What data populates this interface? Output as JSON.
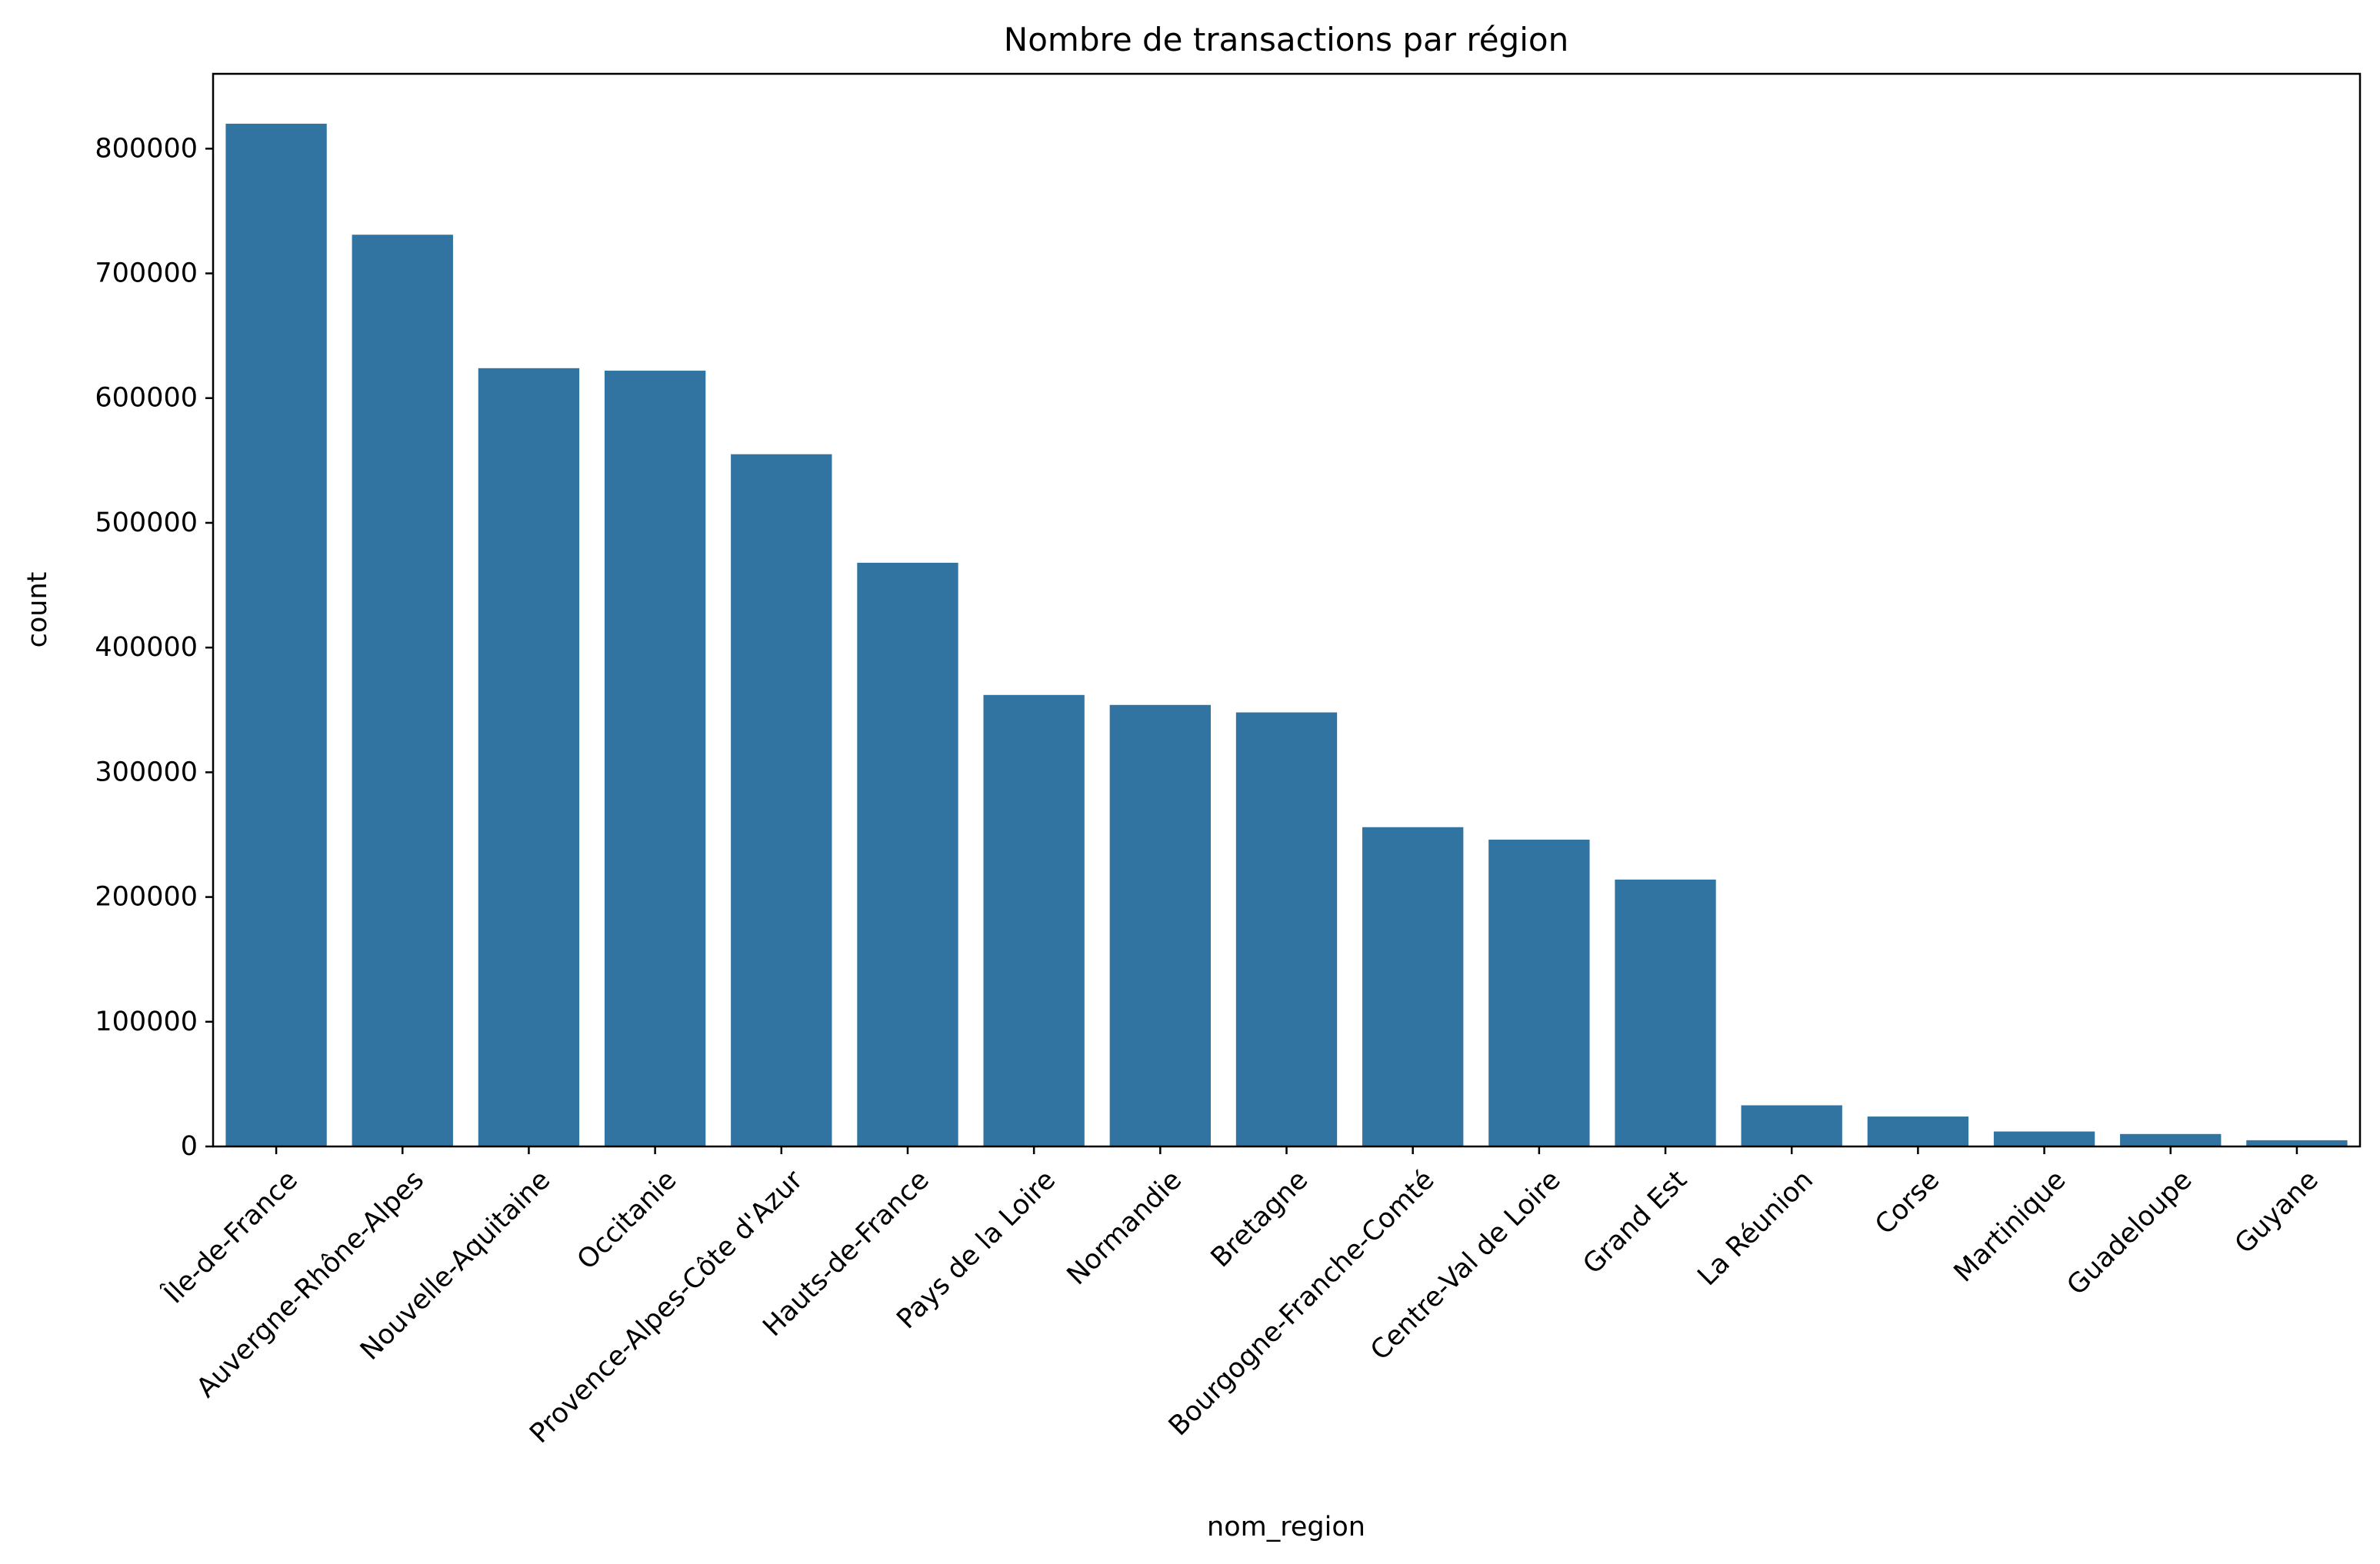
{
  "chart_data": {
    "type": "bar",
    "title": "Nombre de transactions par région",
    "xlabel": "nom_region",
    "ylabel": "count",
    "categories": [
      "Île-de-France",
      "Auvergne-Rhône-Alpes",
      "Nouvelle-Aquitaine",
      "Occitanie",
      "Provence-Alpes-Côte d'Azur",
      "Hauts-de-France",
      "Pays de la Loire",
      "Normandie",
      "Bretagne",
      "Bourgogne-Franche-Comté",
      "Centre-Val de Loire",
      "Grand Est",
      "La Réunion",
      "Corse",
      "Martinique",
      "Guadeloupe",
      "Guyane"
    ],
    "values": [
      820000,
      731000,
      624000,
      622000,
      555000,
      468000,
      362000,
      354000,
      348000,
      256000,
      246000,
      214000,
      33000,
      24000,
      12000,
      10000,
      5000
    ],
    "ylim": [
      0,
      860000
    ],
    "yticks": [
      0,
      100000,
      200000,
      300000,
      400000,
      500000,
      600000,
      700000,
      800000
    ],
    "grid": false,
    "bar_color": "#3274a1"
  }
}
